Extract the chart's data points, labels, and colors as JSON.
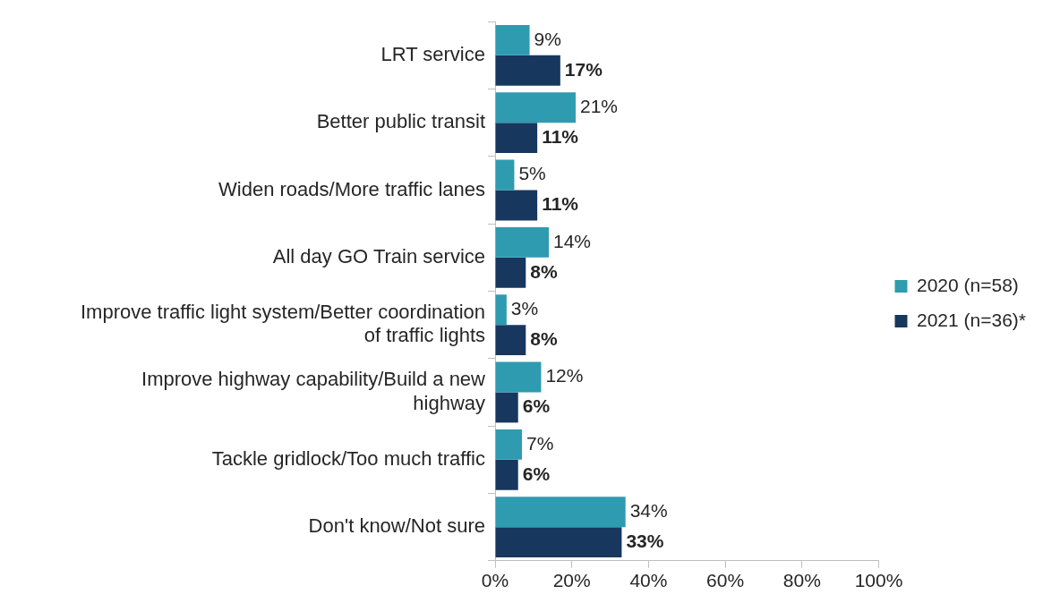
{
  "chart_data": {
    "type": "bar",
    "orientation": "horizontal",
    "categories": [
      "LRT service",
      "Better public transit",
      "Widen roads/More traffic lanes",
      "All day GO Train service",
      "Improve traffic light system/Better coordination of traffic lights",
      "Improve highway capability/Build a new highway",
      "Tackle gridlock/Too much traffic",
      "Don't know/Not sure"
    ],
    "series": [
      {
        "name": "2020 (n=58)",
        "color": "#2e9bb0",
        "values": [
          9,
          21,
          5,
          14,
          3,
          12,
          7,
          34
        ],
        "value_labels": [
          "9%",
          "21%",
          "5%",
          "14%",
          "3%",
          "12%",
          "7%",
          "34%"
        ]
      },
      {
        "name": "2021 (n=36)*",
        "color": "#17375e",
        "values": [
          17,
          11,
          11,
          8,
          8,
          6,
          6,
          33
        ],
        "value_labels": [
          "17%",
          "11%",
          "11%",
          "8%",
          "8%",
          "6%",
          "6%",
          "33%"
        ]
      }
    ],
    "xlim": [
      0,
      100
    ],
    "xticks": [
      {
        "value": 0,
        "label": "0%"
      },
      {
        "value": 20,
        "label": "20%"
      },
      {
        "value": 40,
        "label": "40%"
      },
      {
        "value": 60,
        "label": "60%"
      },
      {
        "value": 80,
        "label": "80%"
      },
      {
        "value": 100,
        "label": "100%"
      }
    ],
    "grid": false,
    "legend": "right"
  }
}
